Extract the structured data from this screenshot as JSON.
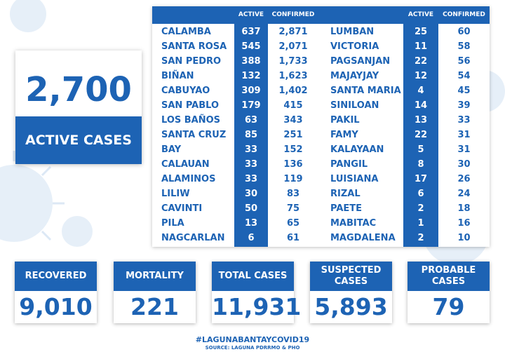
{
  "headline": {
    "active_total": "2,700",
    "label": "ACTIVE CASES"
  },
  "table": {
    "col_active": "ACTIVE",
    "col_confirmed": "CONFIRMED",
    "left": [
      {
        "name": "CALAMBA",
        "active": "637",
        "confirmed": "2,871"
      },
      {
        "name": "SANTA ROSA",
        "active": "545",
        "confirmed": "2,071"
      },
      {
        "name": "SAN PEDRO",
        "active": "388",
        "confirmed": "1,733"
      },
      {
        "name": "BIÑAN",
        "active": "132",
        "confirmed": "1,623"
      },
      {
        "name": "CABUYAO",
        "active": "309",
        "confirmed": "1,402"
      },
      {
        "name": "SAN PABLO",
        "active": "179",
        "confirmed": "415"
      },
      {
        "name": "LOS BAÑOS",
        "active": "63",
        "confirmed": "343"
      },
      {
        "name": "SANTA CRUZ",
        "active": "85",
        "confirmed": "251"
      },
      {
        "name": "BAY",
        "active": "33",
        "confirmed": "152"
      },
      {
        "name": "CALAUAN",
        "active": "33",
        "confirmed": "136"
      },
      {
        "name": "ALAMINOS",
        "active": "33",
        "confirmed": "119"
      },
      {
        "name": "LILIW",
        "active": "30",
        "confirmed": "83"
      },
      {
        "name": "CAVINTI",
        "active": "50",
        "confirmed": "75"
      },
      {
        "name": "PILA",
        "active": "13",
        "confirmed": "65"
      },
      {
        "name": "NAGCARLAN",
        "active": "6",
        "confirmed": "61"
      }
    ],
    "right": [
      {
        "name": "LUMBAN",
        "active": "25",
        "confirmed": "60"
      },
      {
        "name": "VICTORIA",
        "active": "11",
        "confirmed": "58"
      },
      {
        "name": "PAGSANJAN",
        "active": "22",
        "confirmed": "56"
      },
      {
        "name": "MAJAYJAY",
        "active": "12",
        "confirmed": "54"
      },
      {
        "name": "SANTA MARIA",
        "active": "4",
        "confirmed": "45"
      },
      {
        "name": "SINILOAN",
        "active": "14",
        "confirmed": "39"
      },
      {
        "name": "PAKIL",
        "active": "13",
        "confirmed": "33"
      },
      {
        "name": "FAMY",
        "active": "22",
        "confirmed": "31"
      },
      {
        "name": "KALAYAAN",
        "active": "5",
        "confirmed": "31"
      },
      {
        "name": "PANGIL",
        "active": "8",
        "confirmed": "30"
      },
      {
        "name": "LUISIANA",
        "active": "17",
        "confirmed": "26"
      },
      {
        "name": "RIZAL",
        "active": "6",
        "confirmed": "24"
      },
      {
        "name": "PAETE",
        "active": "2",
        "confirmed": "18"
      },
      {
        "name": "MABITAC",
        "active": "1",
        "confirmed": "16"
      },
      {
        "name": "MAGDALENA",
        "active": "2",
        "confirmed": "10"
      }
    ]
  },
  "stats": [
    {
      "label": "RECOVERED",
      "value": "9,010"
    },
    {
      "label": "MORTALITY",
      "value": "221"
    },
    {
      "label": "TOTAL CASES",
      "value": "11,931"
    },
    {
      "label": "SUSPECTED CASES",
      "value": "5,893"
    },
    {
      "label": "PROBABLE CASES",
      "value": "79"
    }
  ],
  "footer": {
    "hashtag": "#LAGUNABANTAYCOVID19",
    "source": "SOURCE: LAGUNA PDRRMO & PHO"
  },
  "colors": {
    "brand_blue": "#1d63b4",
    "background": "#ffffff"
  }
}
